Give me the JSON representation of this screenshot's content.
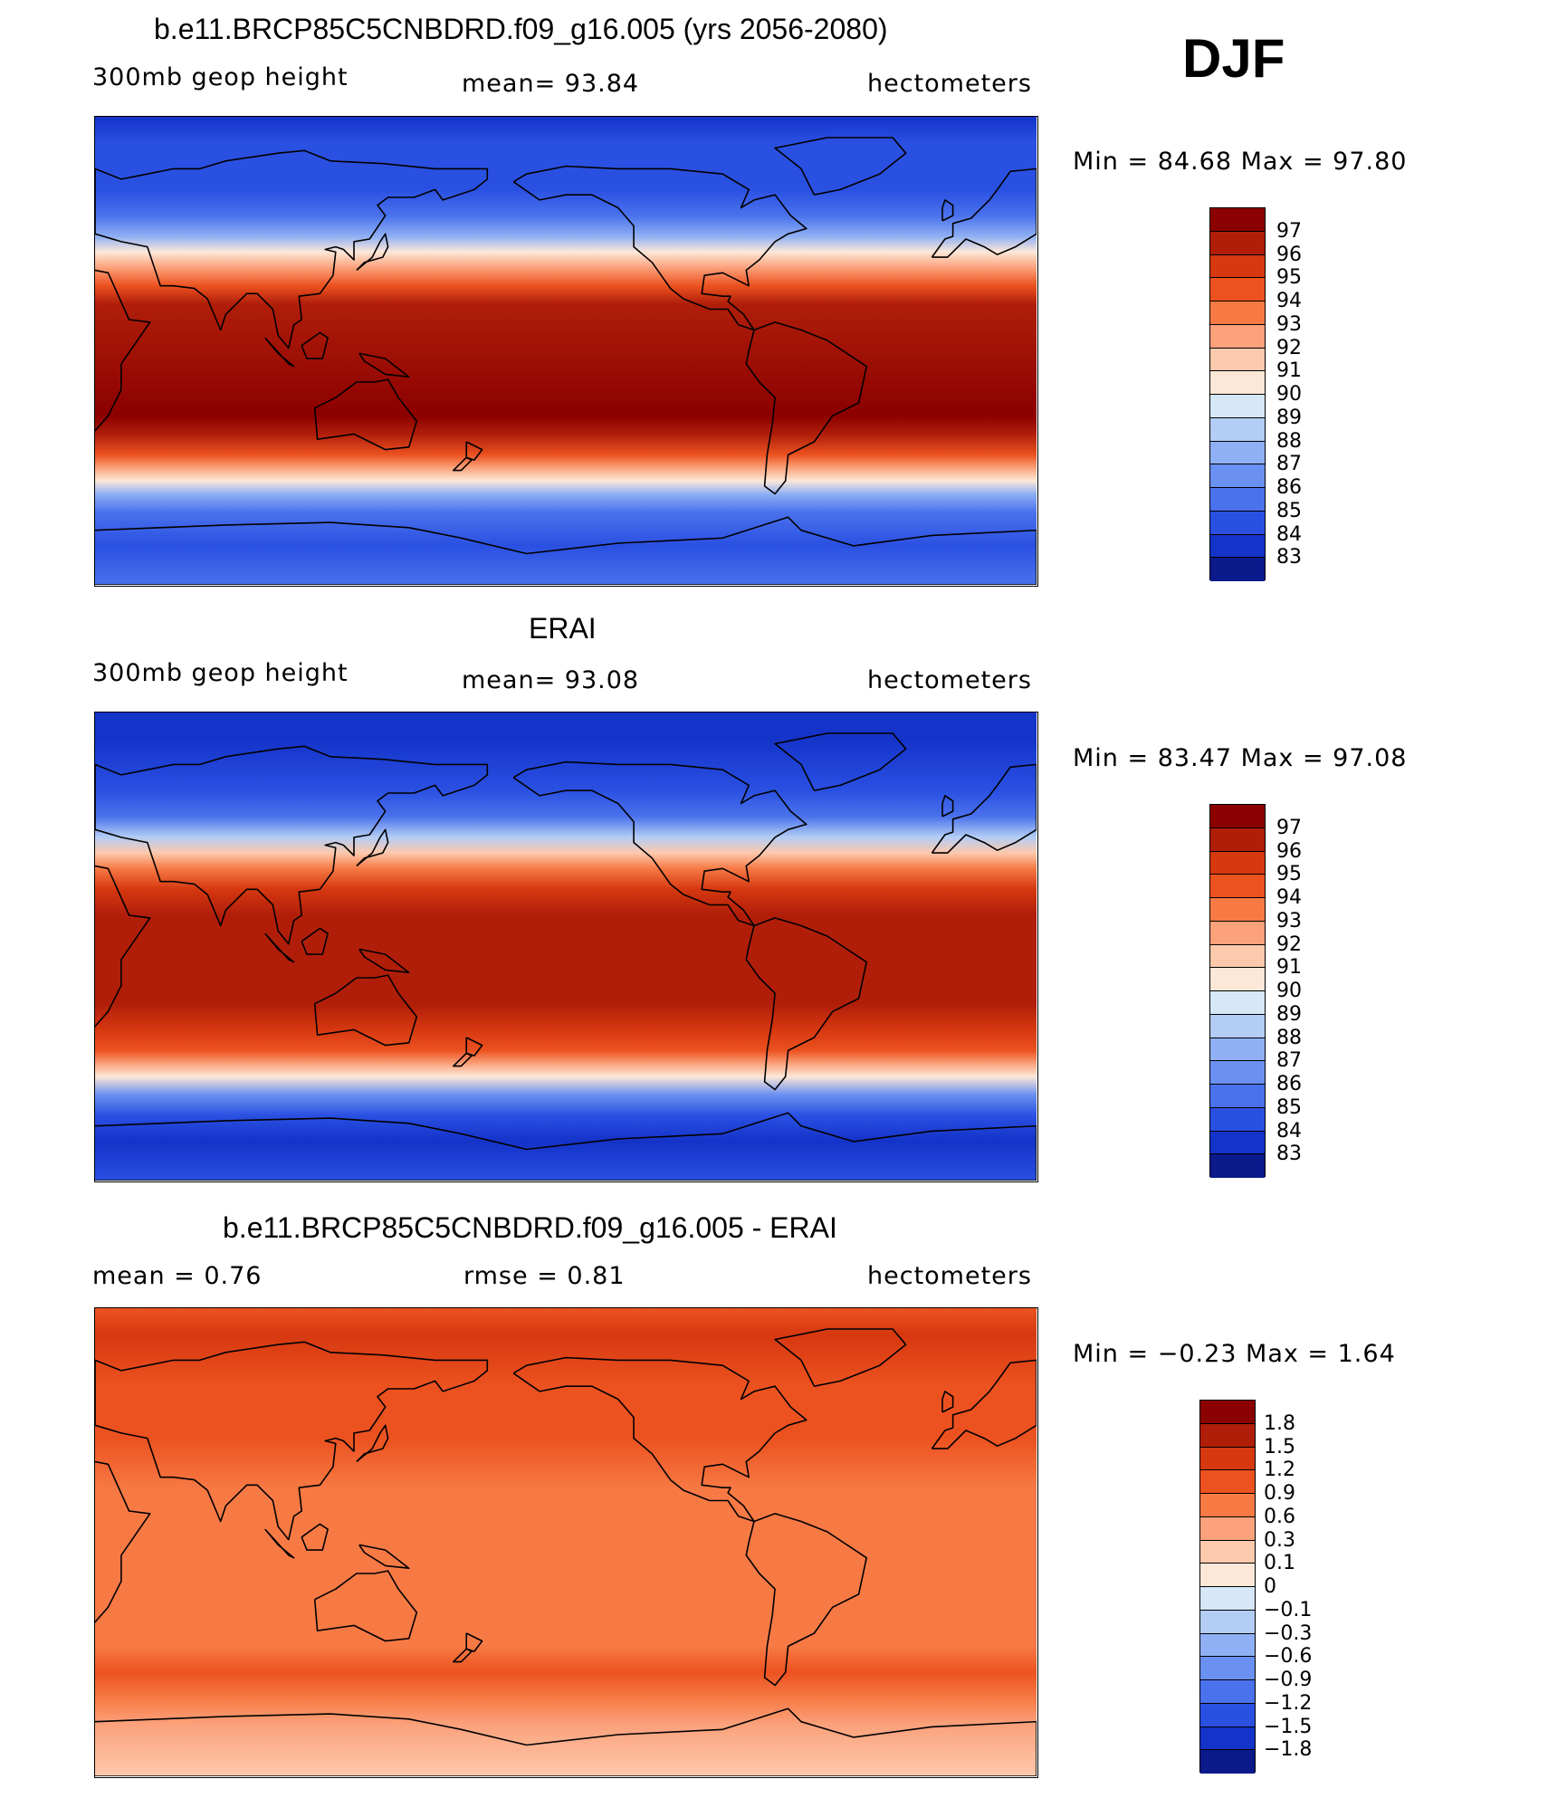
{
  "figure_label": "DJF",
  "panels": [
    {
      "title": "b.e11.BRCP85C5CNBDRD.f09_g16.005 (yrs 2056-2080)",
      "left_label": "300mb  geop  height",
      "center_label": "mean=   93.84",
      "units": "hectometers",
      "minmax": "Min  =    84.68  Max  =    97.80",
      "colorbar": {
        "labels": [
          "97",
          "96",
          "95",
          "94",
          "93",
          "92",
          "91",
          "90",
          "89",
          "88",
          "87",
          "86",
          "85",
          "84",
          "83"
        ],
        "colors": [
          "#8b0000",
          "#b01e0a",
          "#d63810",
          "#ec5220",
          "#f77a45",
          "#fba17b",
          "#fdc9ac",
          "#fde8d8",
          "#d6e7f7",
          "#b3cdf5",
          "#8fb0f4",
          "#6a90f1",
          "#4a72ec",
          "#2a50e2",
          "#1433c8",
          "#0a1a8a"
        ]
      },
      "map_bands": {
        "lat_colors": [
          [
            -90,
            "#4a72ec"
          ],
          [
            -75,
            "#2a50e2"
          ],
          [
            -62,
            "#4a72ec"
          ],
          [
            -55,
            "#8fb0f4"
          ],
          [
            -50,
            "#fde8d8"
          ],
          [
            -45,
            "#fba17b"
          ],
          [
            -40,
            "#ec5220"
          ],
          [
            -32,
            "#b01e0a"
          ],
          [
            -25,
            "#8b0000"
          ],
          [
            18,
            "#b01e0a"
          ],
          [
            25,
            "#ec5220"
          ],
          [
            32,
            "#fba17b"
          ],
          [
            38,
            "#fde8d8"
          ],
          [
            44,
            "#8fb0f4"
          ],
          [
            52,
            "#4a72ec"
          ],
          [
            62,
            "#2a50e2"
          ],
          [
            80,
            "#2a50e2"
          ],
          [
            90,
            "#1433c8"
          ]
        ]
      }
    },
    {
      "title": "ERAI",
      "left_label": "300mb  geop  height",
      "center_label": "mean=   93.08",
      "units": "hectometers",
      "minmax": "Min  =    83.47  Max  =    97.08",
      "colorbar": {
        "labels": [
          "97",
          "96",
          "95",
          "94",
          "93",
          "92",
          "91",
          "90",
          "89",
          "88",
          "87",
          "86",
          "85",
          "84",
          "83"
        ],
        "colors": [
          "#8b0000",
          "#b01e0a",
          "#d63810",
          "#ec5220",
          "#f77a45",
          "#fba17b",
          "#fdc9ac",
          "#fde8d8",
          "#d6e7f7",
          "#b3cdf5",
          "#8fb0f4",
          "#6a90f1",
          "#4a72ec",
          "#2a50e2",
          "#1433c8",
          "#0a1a8a"
        ]
      },
      "map_bands": {
        "lat_colors": [
          [
            -90,
            "#2a50e2"
          ],
          [
            -75,
            "#1433c8"
          ],
          [
            -65,
            "#2a50e2"
          ],
          [
            -57,
            "#6a90f1"
          ],
          [
            -50,
            "#fde8d8"
          ],
          [
            -45,
            "#fba17b"
          ],
          [
            -40,
            "#ec5220"
          ],
          [
            -32,
            "#d63810"
          ],
          [
            -22,
            "#b01e0a"
          ],
          [
            12,
            "#b01e0a"
          ],
          [
            22,
            "#d63810"
          ],
          [
            30,
            "#f77a45"
          ],
          [
            36,
            "#fdc9ac"
          ],
          [
            42,
            "#b3cdf5"
          ],
          [
            50,
            "#4a72ec"
          ],
          [
            60,
            "#2a50e2"
          ],
          [
            80,
            "#1433c8"
          ],
          [
            90,
            "#1433c8"
          ]
        ]
      }
    },
    {
      "title": "b.e11.BRCP85C5CNBDRD.f09_g16.005 - ERAI",
      "left_label": "mean  =      0.76",
      "center_label": "rmse  =      0.81",
      "units": "hectometers",
      "minmax": "Min  =    −0.23  Max  =      1.64",
      "colorbar": {
        "labels": [
          "1.8",
          "1.5",
          "1.2",
          "0.9",
          "0.6",
          "0.3",
          "0.1",
          "0",
          "−0.1",
          "−0.3",
          "−0.6",
          "−0.9",
          "−1.2",
          "−1.5",
          "−1.8"
        ],
        "colors": [
          "#8b0000",
          "#b01e0a",
          "#d63810",
          "#ec5220",
          "#f77a45",
          "#fba17b",
          "#fdc9ac",
          "#fde8d8",
          "#d6e7f7",
          "#b3cdf5",
          "#8fb0f4",
          "#6a90f1",
          "#4a72ec",
          "#2a50e2",
          "#1433c8",
          "#0a1a8a"
        ]
      },
      "map_bands": {
        "lat_colors": [
          [
            -90,
            "#fdc9ac"
          ],
          [
            -70,
            "#fba17b"
          ],
          [
            -60,
            "#f77a45"
          ],
          [
            -50,
            "#ec5220"
          ],
          [
            -40,
            "#f77a45"
          ],
          [
            -20,
            "#f77a45"
          ],
          [
            20,
            "#f77a45"
          ],
          [
            40,
            "#ec5220"
          ],
          [
            60,
            "#ec5220"
          ],
          [
            80,
            "#d63810"
          ],
          [
            90,
            "#ec5220"
          ]
        ]
      }
    }
  ]
}
